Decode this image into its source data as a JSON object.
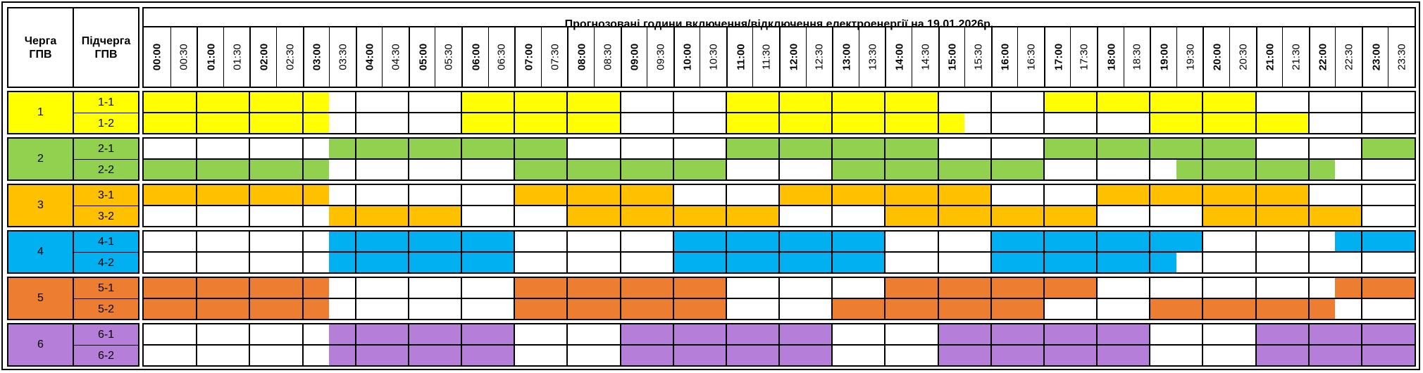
{
  "header": {
    "col_queue": "Черга\nГПВ",
    "col_subqueue": "Підчерга\nГПВ",
    "title": "Прогнозовані години включення/відключення електроенергії на 19.01.2026р."
  },
  "time_labels": [
    "00:00",
    "00:30",
    "01:00",
    "01:30",
    "02:00",
    "02:30",
    "03:00",
    "03:30",
    "04:00",
    "04:30",
    "05:00",
    "05:30",
    "06:00",
    "06:30",
    "07:00",
    "07:30",
    "08:00",
    "08:30",
    "09:00",
    "09:30",
    "10:00",
    "10:30",
    "11:00",
    "11:30",
    "12:00",
    "12:30",
    "13:00",
    "13:30",
    "14:00",
    "14:30",
    "15:00",
    "15:30",
    "16:00",
    "16:30",
    "17:00",
    "17:30",
    "18:00",
    "18:30",
    "19:00",
    "19:30",
    "20:00",
    "20:30",
    "21:00",
    "21:30",
    "22:00",
    "22:30",
    "23:00",
    "23:30"
  ],
  "groups": [
    {
      "queue": "1",
      "color": "#ffff00",
      "subqueues": [
        {
          "label": "1-1",
          "outages": [
            [
              0,
              3.5
            ],
            [
              6,
              9
            ],
            [
              11,
              15
            ],
            [
              17,
              21
            ]
          ]
        },
        {
          "label": "1-2",
          "outages": [
            [
              0,
              3.5
            ],
            [
              6,
              9
            ],
            [
              11,
              15.5
            ],
            [
              19,
              22
            ]
          ]
        }
      ]
    },
    {
      "queue": "2",
      "color": "#92d050",
      "subqueues": [
        {
          "label": "2-1",
          "outages": [
            [
              3.5,
              8
            ],
            [
              11,
              15
            ],
            [
              17,
              21
            ],
            [
              23,
              24
            ]
          ]
        },
        {
          "label": "2-2",
          "outages": [
            [
              0,
              3.5
            ],
            [
              7,
              11
            ],
            [
              13,
              17
            ],
            [
              19.5,
              22.5
            ]
          ]
        }
      ]
    },
    {
      "queue": "3",
      "color": "#ffc000",
      "subqueues": [
        {
          "label": "3-1",
          "outages": [
            [
              0,
              3.5
            ],
            [
              7,
              10
            ],
            [
              12,
              16
            ],
            [
              18,
              22
            ]
          ]
        },
        {
          "label": "3-2",
          "outages": [
            [
              3.5,
              6
            ],
            [
              8,
              12
            ],
            [
              14,
              18
            ],
            [
              20,
              23
            ]
          ]
        }
      ]
    },
    {
      "queue": "4",
      "color": "#00b0f0",
      "subqueues": [
        {
          "label": "4-1",
          "outages": [
            [
              3.5,
              7
            ],
            [
              10,
              14
            ],
            [
              16,
              20
            ],
            [
              22.5,
              24
            ]
          ]
        },
        {
          "label": "4-2",
          "outages": [
            [
              3.5,
              7
            ],
            [
              10,
              14
            ],
            [
              16,
              19.5
            ]
          ]
        }
      ]
    },
    {
      "queue": "5",
      "color": "#ed7d31",
      "subqueues": [
        {
          "label": "5-1",
          "outages": [
            [
              0,
              3.5
            ],
            [
              7,
              11
            ],
            [
              14,
              18
            ],
            [
              22.5,
              24
            ]
          ]
        },
        {
          "label": "5-2",
          "outages": [
            [
              0,
              3.5
            ],
            [
              7,
              11
            ],
            [
              13,
              17
            ],
            [
              19,
              22.5
            ]
          ]
        }
      ]
    },
    {
      "queue": "6",
      "color": "#b57ed9",
      "subqueues": [
        {
          "label": "6-1",
          "outages": [
            [
              3.5,
              7
            ],
            [
              9,
              13
            ],
            [
              15,
              19
            ],
            [
              21,
              24
            ]
          ]
        },
        {
          "label": "6-2",
          "outages": [
            [
              3.5,
              7
            ],
            [
              9,
              13
            ],
            [
              15,
              19
            ],
            [
              21,
              24
            ]
          ]
        }
      ]
    }
  ]
}
